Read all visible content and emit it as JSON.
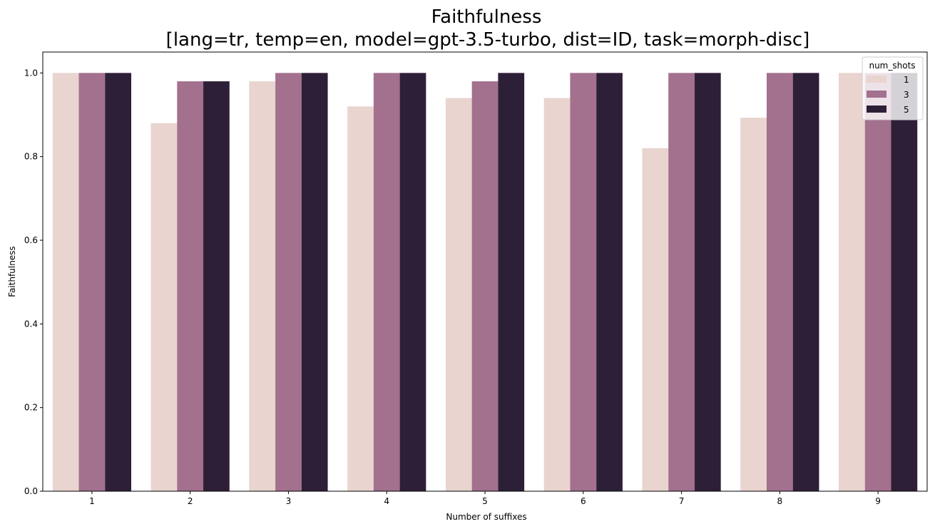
{
  "chart_data": {
    "type": "bar",
    "title_lines": [
      "Faithfulness",
      "[lang=tr, temp=en, model=gpt-3.5-turbo, dist=ID, task=morph-disc]"
    ],
    "xlabel": "Number of suffixes",
    "ylabel": "Faithfulness",
    "categories": [
      "1",
      "2",
      "3",
      "4",
      "5",
      "6",
      "7",
      "8",
      "9"
    ],
    "ylim": [
      0,
      1.05
    ],
    "yticks": [
      0.0,
      0.2,
      0.4,
      0.6,
      0.8,
      1.0
    ],
    "ytick_labels": [
      "0.0",
      "0.2",
      "0.4",
      "0.6",
      "0.8",
      "1.0"
    ],
    "grid": false,
    "legend": {
      "title": "num_shots",
      "placement": "top-right"
    },
    "series": [
      {
        "name": "1",
        "color": "#e9d4cf",
        "values": [
          1.0,
          0.88,
          0.98,
          0.92,
          0.94,
          0.94,
          0.82,
          0.893,
          1.0
        ]
      },
      {
        "name": "3",
        "color": "#a3708e",
        "values": [
          1.0,
          0.98,
          1.0,
          1.0,
          0.98,
          1.0,
          1.0,
          1.0,
          1.0
        ]
      },
      {
        "name": "5",
        "color": "#2e1f38",
        "values": [
          1.0,
          0.98,
          1.0,
          1.0,
          1.0,
          1.0,
          1.0,
          1.0,
          1.0
        ]
      }
    ]
  }
}
